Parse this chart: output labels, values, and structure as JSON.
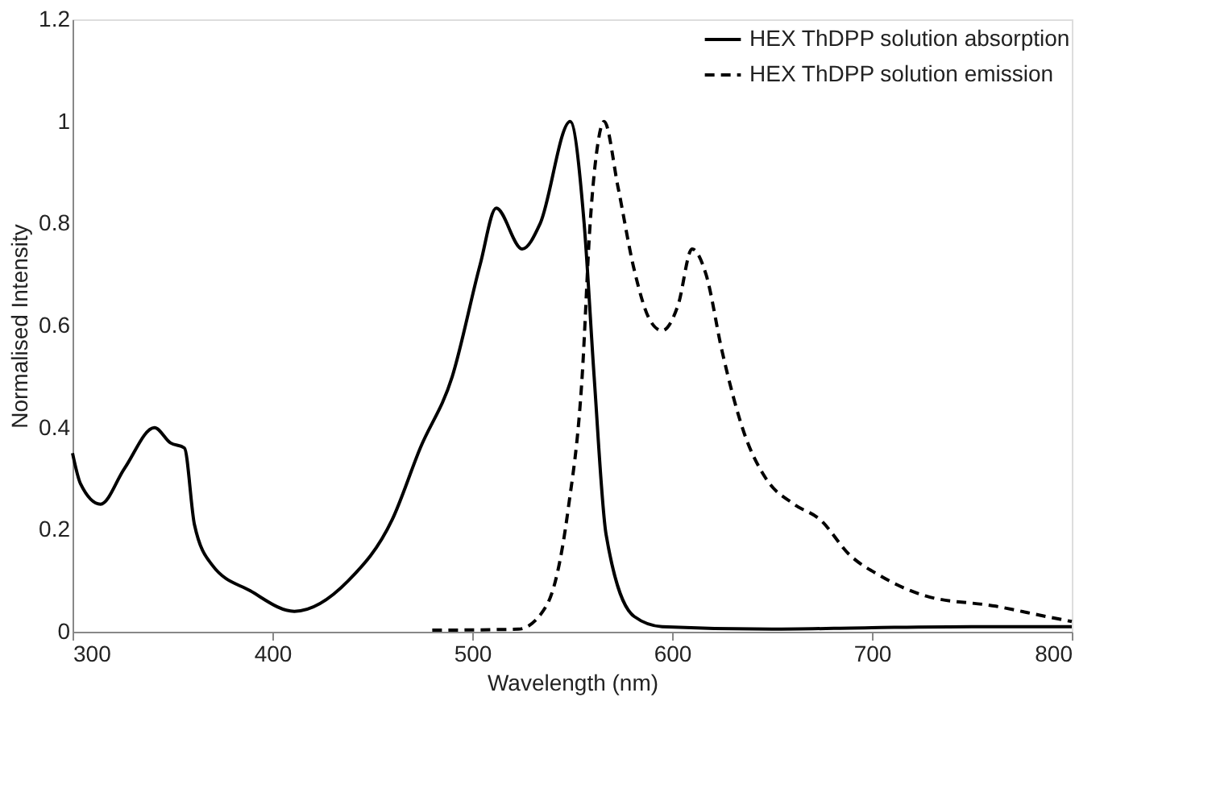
{
  "chart_data": {
    "type": "line",
    "xlabel": "Wavelength (nm)",
    "ylabel": "Normalised Intensity",
    "xlim": [
      300,
      800
    ],
    "xticks": [
      300,
      400,
      500,
      600,
      700,
      800
    ],
    "ylim": [
      0,
      1.2
    ],
    "yticks": [
      0,
      0.2,
      0.4,
      0.6,
      0.8,
      1,
      1.2
    ],
    "grid": false,
    "legend": "top right",
    "marker": "none",
    "series": [
      {
        "name": "HEX ThDPP solution absorption",
        "color": "#000000",
        "line_style": "solid",
        "x": [
          300,
          304,
          314,
          326,
          341,
          349,
          356,
          361,
          370,
          389,
          411,
          438,
          460,
          474,
          490,
          504,
          512,
          525,
          534,
          549,
          556,
          561,
          567,
          581,
          595,
          650,
          700,
          750,
          800
        ],
        "values": [
          0.35,
          0.29,
          0.25,
          0.32,
          0.4,
          0.37,
          0.36,
          0.21,
          0.13,
          0.08,
          0.04,
          0.1,
          0.22,
          0.36,
          0.5,
          0.72,
          0.83,
          0.75,
          0.8,
          1.0,
          0.8,
          0.5,
          0.19,
          0.03,
          0.01,
          0.005,
          0.008,
          0.01,
          0.01
        ]
      },
      {
        "name": "HEX ThDPP solution emission",
        "color": "#000000",
        "line_style": "dashed",
        "x": [
          480,
          523,
          537,
          548,
          555,
          559,
          563,
          566,
          573,
          581,
          589,
          595,
          603,
          610,
          617,
          625,
          636,
          647,
          661,
          674,
          689,
          704,
          727,
          762,
          787,
          800
        ],
        "values": [
          0.003,
          0.005,
          0.05,
          0.24,
          0.5,
          0.8,
          0.96,
          1.0,
          0.87,
          0.71,
          0.61,
          0.59,
          0.64,
          0.75,
          0.7,
          0.55,
          0.39,
          0.3,
          0.25,
          0.22,
          0.15,
          0.11,
          0.07,
          0.05,
          0.03,
          0.02
        ]
      }
    ]
  }
}
